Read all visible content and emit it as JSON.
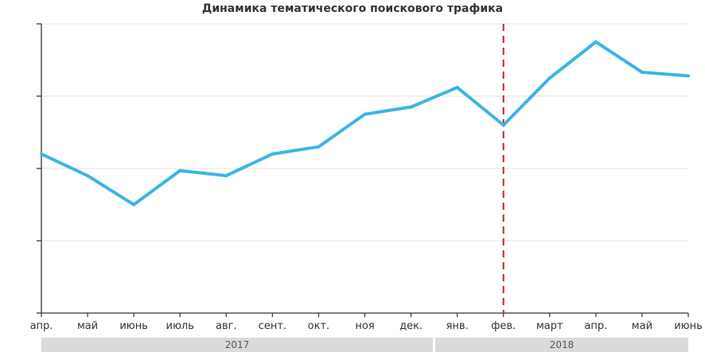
{
  "chart_data": {
    "type": "line",
    "title": "Динамика тематического поискового трафика",
    "xlabel": "",
    "ylabel": "",
    "categories": [
      "апр.",
      "май",
      "июнь",
      "июль",
      "авг.",
      "сент.",
      "окт.",
      "ноя",
      "дек.",
      "янв.",
      "фев.",
      "март",
      "апр.",
      "май",
      "июнь"
    ],
    "series": [
      {
        "values": [
          2.2,
          1.9,
          1.5,
          1.97,
          1.9,
          2.2,
          2.3,
          2.75,
          2.85,
          3.12,
          2.6,
          3.25,
          3.75,
          3.33,
          3.28
        ]
      }
    ],
    "ylim": [
      0,
      4
    ],
    "yticks": [
      0,
      1,
      2,
      3,
      4
    ],
    "y_tick_labels_shown": false,
    "grid": "horizontal",
    "legend": "none",
    "marker_line": {
      "category": "фев.",
      "style": "dashed",
      "color": "#cc1f2d"
    },
    "year_groups": [
      {
        "label": "2017",
        "from": "апр.",
        "to": "дек."
      },
      {
        "label": "2018",
        "from": "янв.",
        "to": "июнь"
      }
    ],
    "colors": {
      "line": "#3cb4e5",
      "grid": "#e3e3e3",
      "axis": "#333333",
      "band": "#d9dadc"
    }
  }
}
